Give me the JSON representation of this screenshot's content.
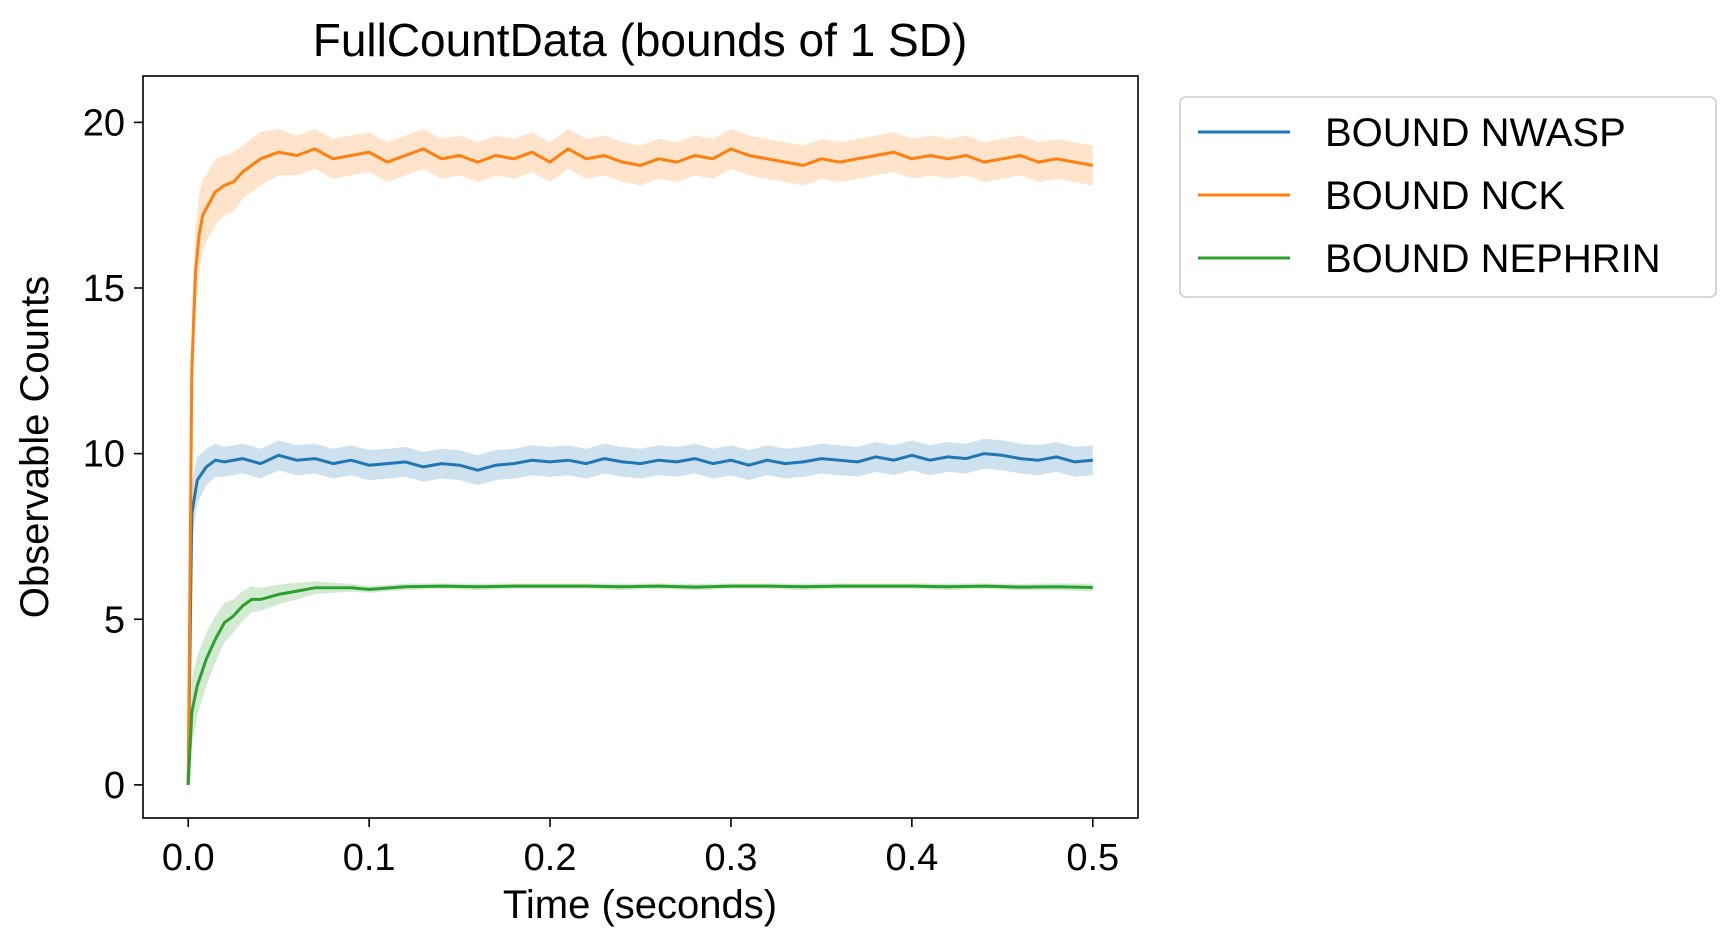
{
  "chart_data": {
    "type": "line",
    "title": "FullCountData (bounds of 1 SD)",
    "xlabel": "Time (seconds)",
    "ylabel": "Observable Counts",
    "xlim": [
      -0.025,
      0.525
    ],
    "ylim": [
      -1,
      21.4
    ],
    "xticks": [
      0.0,
      0.1,
      0.2,
      0.3,
      0.4,
      0.5
    ],
    "xtick_labels": [
      "0.0",
      "0.1",
      "0.2",
      "0.3",
      "0.4",
      "0.5"
    ],
    "yticks": [
      0,
      5,
      10,
      15,
      20
    ],
    "ytick_labels": [
      "0",
      "5",
      "10",
      "15",
      "20"
    ],
    "grid": false,
    "legend_position": "outside-top-right",
    "series": [
      {
        "name": "BOUND NWASP",
        "color": "#1f77b4",
        "x": [
          0,
          0.002,
          0.005,
          0.01,
          0.015,
          0.02,
          0.03,
          0.04,
          0.05,
          0.06,
          0.07,
          0.08,
          0.09,
          0.1,
          0.11,
          0.12,
          0.13,
          0.14,
          0.15,
          0.16,
          0.17,
          0.18,
          0.19,
          0.2,
          0.21,
          0.22,
          0.23,
          0.24,
          0.25,
          0.26,
          0.27,
          0.28,
          0.29,
          0.3,
          0.31,
          0.32,
          0.33,
          0.34,
          0.35,
          0.36,
          0.37,
          0.38,
          0.39,
          0.4,
          0.41,
          0.42,
          0.43,
          0.44,
          0.45,
          0.46,
          0.47,
          0.48,
          0.49,
          0.5
        ],
        "y": [
          0,
          8.2,
          9.2,
          9.6,
          9.8,
          9.75,
          9.85,
          9.7,
          9.95,
          9.8,
          9.85,
          9.7,
          9.8,
          9.65,
          9.7,
          9.75,
          9.6,
          9.7,
          9.65,
          9.5,
          9.65,
          9.7,
          9.8,
          9.75,
          9.8,
          9.7,
          9.85,
          9.75,
          9.7,
          9.8,
          9.75,
          9.85,
          9.7,
          9.8,
          9.65,
          9.8,
          9.7,
          9.75,
          9.85,
          9.8,
          9.75,
          9.9,
          9.8,
          9.95,
          9.8,
          9.9,
          9.85,
          10.0,
          9.95,
          9.85,
          9.8,
          9.9,
          9.75,
          9.8
        ],
        "sd": [
          0,
          0.9,
          0.7,
          0.55,
          0.5,
          0.45,
          0.45,
          0.45,
          0.45,
          0.45,
          0.45,
          0.45,
          0.45,
          0.45,
          0.45,
          0.45,
          0.45,
          0.45,
          0.45,
          0.45,
          0.45,
          0.45,
          0.45,
          0.45,
          0.45,
          0.45,
          0.45,
          0.45,
          0.45,
          0.45,
          0.45,
          0.45,
          0.45,
          0.45,
          0.45,
          0.45,
          0.45,
          0.45,
          0.45,
          0.45,
          0.45,
          0.45,
          0.45,
          0.45,
          0.45,
          0.45,
          0.45,
          0.45,
          0.45,
          0.45,
          0.45,
          0.45,
          0.45,
          0.45
        ]
      },
      {
        "name": "BOUND NCK",
        "color": "#ff7f0e",
        "x": [
          0,
          0.002,
          0.004,
          0.006,
          0.008,
          0.01,
          0.015,
          0.02,
          0.025,
          0.03,
          0.04,
          0.05,
          0.06,
          0.07,
          0.08,
          0.09,
          0.1,
          0.11,
          0.12,
          0.13,
          0.14,
          0.15,
          0.16,
          0.17,
          0.18,
          0.19,
          0.2,
          0.21,
          0.22,
          0.23,
          0.24,
          0.25,
          0.26,
          0.27,
          0.28,
          0.29,
          0.3,
          0.31,
          0.32,
          0.33,
          0.34,
          0.35,
          0.36,
          0.37,
          0.38,
          0.39,
          0.4,
          0.41,
          0.42,
          0.43,
          0.44,
          0.45,
          0.46,
          0.47,
          0.48,
          0.49,
          0.5
        ],
        "y": [
          0,
          12.5,
          15.5,
          16.6,
          17.2,
          17.4,
          17.9,
          18.1,
          18.2,
          18.5,
          18.9,
          19.1,
          19.0,
          19.2,
          18.9,
          19.0,
          19.1,
          18.8,
          19.0,
          19.2,
          18.9,
          19.0,
          18.8,
          19.0,
          18.9,
          19.1,
          18.8,
          19.2,
          18.9,
          19.0,
          18.8,
          18.7,
          18.9,
          18.8,
          19.0,
          18.9,
          19.2,
          19.0,
          18.9,
          18.8,
          18.7,
          18.9,
          18.8,
          18.9,
          19.0,
          19.1,
          18.9,
          19.0,
          18.9,
          19.0,
          18.8,
          18.9,
          19.0,
          18.8,
          18.9,
          18.8,
          18.7
        ],
        "sd": [
          0,
          1.5,
          1.3,
          1.2,
          1.1,
          1.0,
          1.0,
          0.9,
          0.9,
          0.8,
          0.8,
          0.7,
          0.6,
          0.6,
          0.6,
          0.6,
          0.6,
          0.6,
          0.6,
          0.6,
          0.6,
          0.6,
          0.6,
          0.6,
          0.6,
          0.6,
          0.6,
          0.6,
          0.6,
          0.6,
          0.6,
          0.6,
          0.6,
          0.6,
          0.6,
          0.6,
          0.6,
          0.6,
          0.6,
          0.6,
          0.6,
          0.6,
          0.6,
          0.6,
          0.6,
          0.6,
          0.6,
          0.6,
          0.6,
          0.6,
          0.6,
          0.6,
          0.6,
          0.6,
          0.6,
          0.6,
          0.6
        ]
      },
      {
        "name": "BOUND NEPHRIN",
        "color": "#2ca02c",
        "x": [
          0,
          0.002,
          0.005,
          0.01,
          0.015,
          0.02,
          0.025,
          0.03,
          0.035,
          0.04,
          0.05,
          0.06,
          0.07,
          0.08,
          0.09,
          0.1,
          0.12,
          0.14,
          0.16,
          0.18,
          0.2,
          0.22,
          0.24,
          0.26,
          0.28,
          0.3,
          0.32,
          0.34,
          0.36,
          0.38,
          0.4,
          0.42,
          0.44,
          0.46,
          0.48,
          0.5
        ],
        "y": [
          0,
          2.2,
          3.0,
          3.8,
          4.4,
          4.9,
          5.1,
          5.4,
          5.6,
          5.6,
          5.75,
          5.85,
          5.95,
          5.95,
          5.95,
          5.9,
          5.98,
          6.0,
          5.98,
          6.0,
          6.0,
          6.0,
          5.98,
          6.0,
          5.97,
          6.0,
          6.0,
          5.98,
          6.0,
          6.0,
          6.0,
          5.98,
          6.0,
          5.97,
          5.98,
          5.96
        ],
        "sd": [
          0,
          1.0,
          0.9,
          0.8,
          0.7,
          0.6,
          0.5,
          0.45,
          0.4,
          0.35,
          0.3,
          0.25,
          0.2,
          0.15,
          0.12,
          0.1,
          0.1,
          0.08,
          0.1,
          0.08,
          0.08,
          0.08,
          0.1,
          0.08,
          0.1,
          0.08,
          0.08,
          0.1,
          0.08,
          0.08,
          0.08,
          0.1,
          0.08,
          0.1,
          0.1,
          0.12
        ]
      }
    ]
  }
}
